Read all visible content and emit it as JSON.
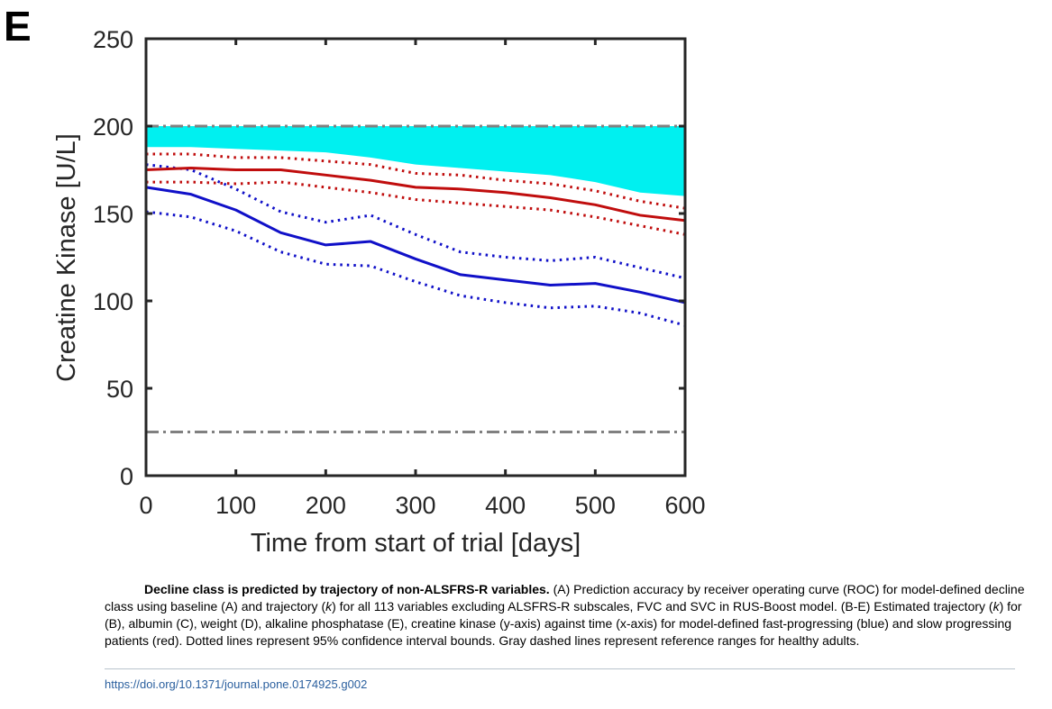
{
  "panel_label": "E",
  "caption": {
    "title": "Decline class is predicted by trajectory of non-ALSFRS-R variables.",
    "text_1": " (A) Prediction accuracy by receiver operating curve (ROC) for model-defined decline class using baseline (A) and trajectory (",
    "k_1": "k",
    "text_2": ") for all 113 variables excluding ALSFRS-R subscales, FVC and SVC in RUS-Boost model. (B-E) Estimated trajectory (",
    "k_2": "k",
    "text_3": ") for (B), albumin (C), weight (D), alkaline phosphatase (E), creatine kinase (y-axis) against time (x-axis) for model-defined fast-progressing (blue) and slow progressing patients (red). Dotted lines represent 95% confidence interval bounds. Gray dashed lines represent reference ranges for healthy adults."
  },
  "doi": "https://doi.org/10.1371/journal.pone.0174925.g002",
  "colors": {
    "fast": "#1010c8",
    "slow": "#c00d0d",
    "reference": "#808080",
    "highlight": "#00f0f0",
    "axes": "#262626"
  },
  "chart_data": {
    "type": "line",
    "xlabel": "Time from start of trial [days]",
    "ylabel": "Creatine Kinase [U/L]",
    "xlim": [
      0,
      600
    ],
    "ylim": [
      0,
      250
    ],
    "xticks": [
      0,
      100,
      200,
      300,
      400,
      500,
      600
    ],
    "yticks": [
      0,
      50,
      100,
      150,
      200,
      250
    ],
    "x": [
      0,
      50,
      100,
      150,
      200,
      250,
      300,
      350,
      400,
      450,
      500,
      550,
      600
    ],
    "series": [
      {
        "role": "fast-mean",
        "color": "fast",
        "style": "solid",
        "values": [
          165,
          161,
          152,
          139,
          132,
          134,
          124,
          115,
          112,
          109,
          110,
          105,
          99
        ]
      },
      {
        "role": "fast-upper",
        "color": "fast",
        "style": "dotted",
        "values": [
          178,
          175,
          164,
          151,
          145,
          149,
          138,
          128,
          125,
          123,
          125,
          119,
          113
        ]
      },
      {
        "role": "fast-lower",
        "color": "fast",
        "style": "dotted",
        "values": [
          151,
          148,
          140,
          128,
          121,
          120,
          111,
          103,
          99,
          96,
          97,
          93,
          86
        ]
      },
      {
        "role": "slow-mean",
        "color": "slow",
        "style": "solid",
        "values": [
          175,
          176,
          175,
          175,
          172,
          169,
          165,
          164,
          162,
          159,
          155,
          149,
          146
        ]
      },
      {
        "role": "slow-upper",
        "color": "slow",
        "style": "dotted",
        "values": [
          184,
          184,
          182,
          182,
          180,
          178,
          173,
          172,
          169,
          167,
          163,
          157,
          153
        ]
      },
      {
        "role": "slow-lower",
        "color": "slow",
        "style": "dotted",
        "values": [
          168,
          168,
          167,
          168,
          165,
          162,
          158,
          156,
          154,
          152,
          148,
          143,
          138
        ]
      }
    ],
    "reference_lines": [
      200,
      25
    ],
    "highlight_band": {
      "x": [
        0,
        50,
        100,
        150,
        200,
        250,
        300,
        350,
        400,
        450,
        500,
        550,
        600
      ],
      "top": [
        200,
        200,
        200,
        200,
        200,
        200,
        200,
        200,
        200,
        200,
        200,
        200,
        200
      ],
      "bottom": [
        188,
        188,
        187,
        186,
        185,
        182,
        178,
        176,
        174,
        172,
        168,
        162,
        160
      ]
    },
    "grid": false
  }
}
